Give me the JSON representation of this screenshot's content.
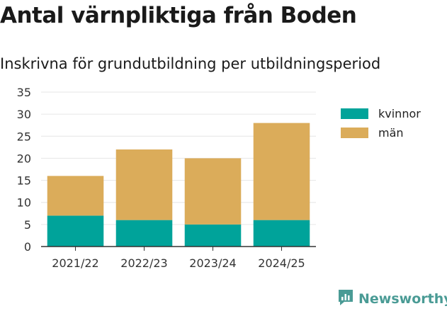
{
  "title": "Antal värnpliktiga från Boden",
  "subtitle": "Inskrivna för grundutbildning per utbildningsperiod",
  "brand": {
    "name": "Newsworthy",
    "icon": "newsworthy-logo-icon"
  },
  "colors": {
    "kvinnor": "#00a39a",
    "man": "#dbac5a",
    "grid": "#e6e6e6",
    "axis": "#333333",
    "brand": "#4a9b95"
  },
  "chart_data": {
    "type": "bar",
    "stacked": true,
    "categories": [
      "2021/22",
      "2022/23",
      "2023/24",
      "2024/25"
    ],
    "series": [
      {
        "name": "kvinnor",
        "values": [
          7,
          6,
          5,
          6
        ]
      },
      {
        "name": "män",
        "values": [
          9,
          16,
          15,
          22
        ]
      }
    ],
    "ylim": [
      0,
      35
    ],
    "yticks": [
      "0",
      "5",
      "10",
      "15",
      "20",
      "25",
      "30",
      "35"
    ],
    "grid": true,
    "legend": "right"
  }
}
